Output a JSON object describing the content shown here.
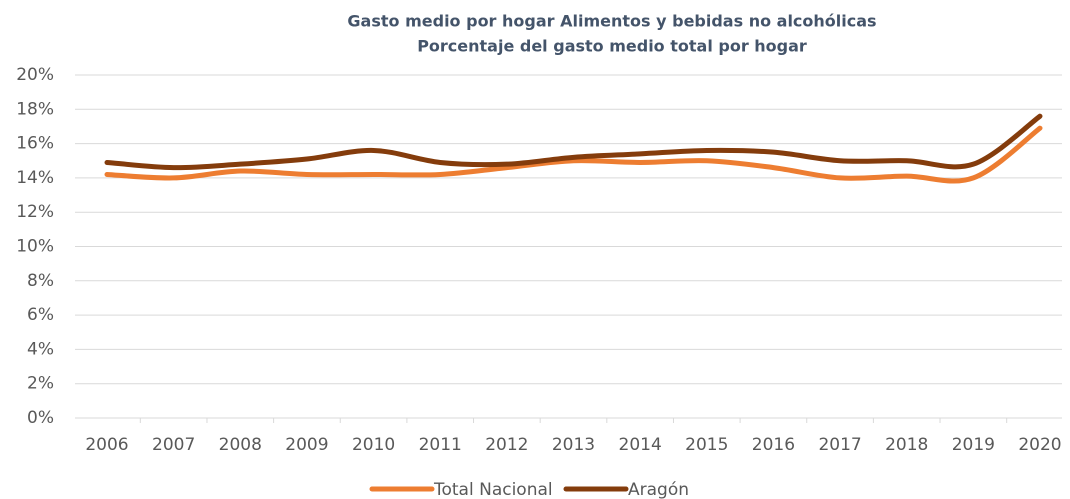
{
  "chart_data": {
    "type": "line",
    "title": "Gasto medio por hogar Alimentos y bebidas no alcohólicas",
    "subtitle": "Porcentaje del gasto medio total por hogar",
    "categories": [
      "2006",
      "2007",
      "2008",
      "2009",
      "2010",
      "2011",
      "2012",
      "2013",
      "2014",
      "2015",
      "2016",
      "2017",
      "2018",
      "2019",
      "2020"
    ],
    "series": [
      {
        "name": "Total Nacional",
        "color": "#ed7d31",
        "values": [
          14.2,
          14.0,
          14.4,
          14.2,
          14.2,
          14.2,
          14.6,
          15.0,
          14.9,
          15.0,
          14.6,
          14.0,
          14.1,
          14.0,
          16.9
        ]
      },
      {
        "name": "Aragón",
        "color": "#843c0c",
        "values": [
          14.9,
          14.6,
          14.8,
          15.1,
          15.6,
          14.9,
          14.8,
          15.2,
          15.4,
          15.6,
          15.5,
          15.0,
          15.0,
          14.8,
          17.6
        ]
      }
    ],
    "ylim": [
      0,
      20
    ],
    "yticks": [
      {
        "value": 0,
        "label": "0%"
      },
      {
        "value": 2,
        "label": "2%"
      },
      {
        "value": 4,
        "label": "4%"
      },
      {
        "value": 6,
        "label": "6%"
      },
      {
        "value": 8,
        "label": "8%"
      },
      {
        "value": 10,
        "label": "10%"
      },
      {
        "value": 12,
        "label": "12%"
      },
      {
        "value": 14,
        "label": "14%"
      },
      {
        "value": 16,
        "label": "16%"
      },
      {
        "value": 18,
        "label": "18%"
      },
      {
        "value": 20,
        "label": "20%"
      }
    ],
    "grid": true,
    "smooth": true,
    "legend": "bottom"
  }
}
